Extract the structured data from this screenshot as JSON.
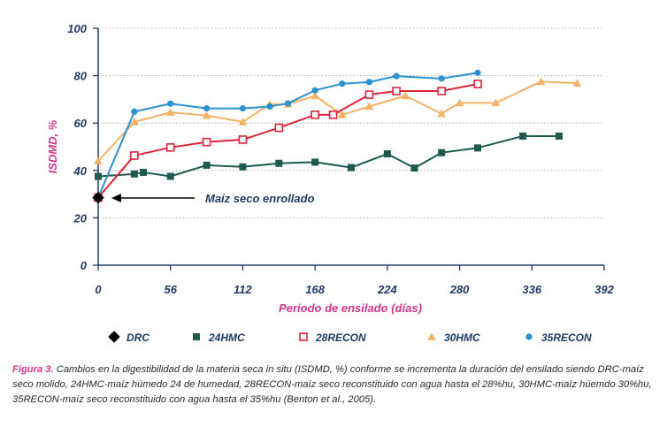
{
  "colors": {
    "DRC": "#000000",
    "24HMC": "#1f5a4e",
    "28RECON": "#e0243c",
    "30HMC": "#f5b266",
    "35RECON": "#2a93cf",
    "axis": "#243a66",
    "title": "#d6338a",
    "grid": "#9a9a9a"
  },
  "chart_data": {
    "type": "line",
    "xlabel": "Periodo de ensilado (días)",
    "ylabel": "ISDMD, %",
    "xlim": [
      0,
      392
    ],
    "ylim": [
      0,
      100
    ],
    "x_ticks": [
      0,
      56,
      112,
      168,
      224,
      280,
      336,
      392
    ],
    "y_ticks": [
      0,
      20,
      40,
      60,
      80,
      100
    ],
    "grid": "horizontal dotted",
    "legend_position": "bottom",
    "series": [
      {
        "name": "DRC",
        "marker": "diamond",
        "points": [
          [
            0,
            28.5
          ]
        ]
      },
      {
        "name": "24HMC",
        "marker": "square",
        "points": [
          [
            0,
            37.5
          ],
          [
            28,
            38.5
          ],
          [
            35,
            39.2
          ],
          [
            56,
            37.5
          ],
          [
            84,
            42.2
          ],
          [
            112,
            41.5
          ],
          [
            140,
            43
          ],
          [
            168,
            43.5
          ],
          [
            196,
            41.2
          ],
          [
            224,
            47
          ],
          [
            245,
            41
          ],
          [
            266,
            47.5
          ],
          [
            294,
            49.5
          ],
          [
            329,
            54.5
          ],
          [
            357,
            54.5
          ]
        ]
      },
      {
        "name": "28RECON",
        "marker": "open-square",
        "points": [
          [
            0,
            28.5
          ],
          [
            28,
            46.3
          ],
          [
            56,
            49.7
          ],
          [
            84,
            52
          ],
          [
            112,
            53
          ],
          [
            140,
            58
          ],
          [
            168,
            63.5
          ],
          [
            182,
            63.5
          ],
          [
            210,
            72
          ],
          [
            231,
            73.5
          ],
          [
            266,
            73.5
          ],
          [
            294,
            76.5
          ]
        ]
      },
      {
        "name": "30HMC",
        "marker": "triangle",
        "points": [
          [
            0,
            44
          ],
          [
            28,
            60.5
          ],
          [
            56,
            64.5
          ],
          [
            84,
            63.2
          ],
          [
            112,
            60.5
          ],
          [
            133,
            68
          ],
          [
            147,
            68
          ],
          [
            168,
            71.5
          ],
          [
            189,
            63.5
          ],
          [
            210,
            67
          ],
          [
            238,
            71.5
          ],
          [
            266,
            64
          ],
          [
            280,
            68.5
          ],
          [
            308,
            68.5
          ],
          [
            343,
            77.5
          ],
          [
            371,
            76.8
          ]
        ]
      },
      {
        "name": "35RECON",
        "marker": "circle",
        "points": [
          [
            0,
            28.5
          ],
          [
            28,
            64.8
          ],
          [
            56,
            68.2
          ],
          [
            84,
            66.2
          ],
          [
            112,
            66.2
          ],
          [
            133,
            67
          ],
          [
            147,
            68.3
          ],
          [
            168,
            73.8
          ],
          [
            189,
            76.6
          ],
          [
            210,
            77.3
          ],
          [
            231,
            79.8
          ],
          [
            266,
            78.8
          ],
          [
            294,
            81.2
          ]
        ]
      }
    ],
    "annotations": [
      {
        "text": "Maíz seco enrollado",
        "x": 0,
        "y": 28.5
      }
    ]
  },
  "legend": [
    "DRC",
    "24HMC",
    "28RECON",
    "30HMC",
    "35RECON"
  ],
  "caption": {
    "label": "Figura 3.",
    "text": " Cambios en la digestibilidad de la materia seca in situ (ISDMD, %) conforme se incrementa la duración del ensilado siendo DRC-maíz seco molido, 24HMC-maíz húmedo 24 de humedad, 28RECON-maíz seco reconstituido con agua hasta el 28%hu, 30HMC-maíz húemdo 30%hu, 35RECON-maíz seco reconstituido con agua hasta el 35%hu (Benton et al., 2005)."
  }
}
